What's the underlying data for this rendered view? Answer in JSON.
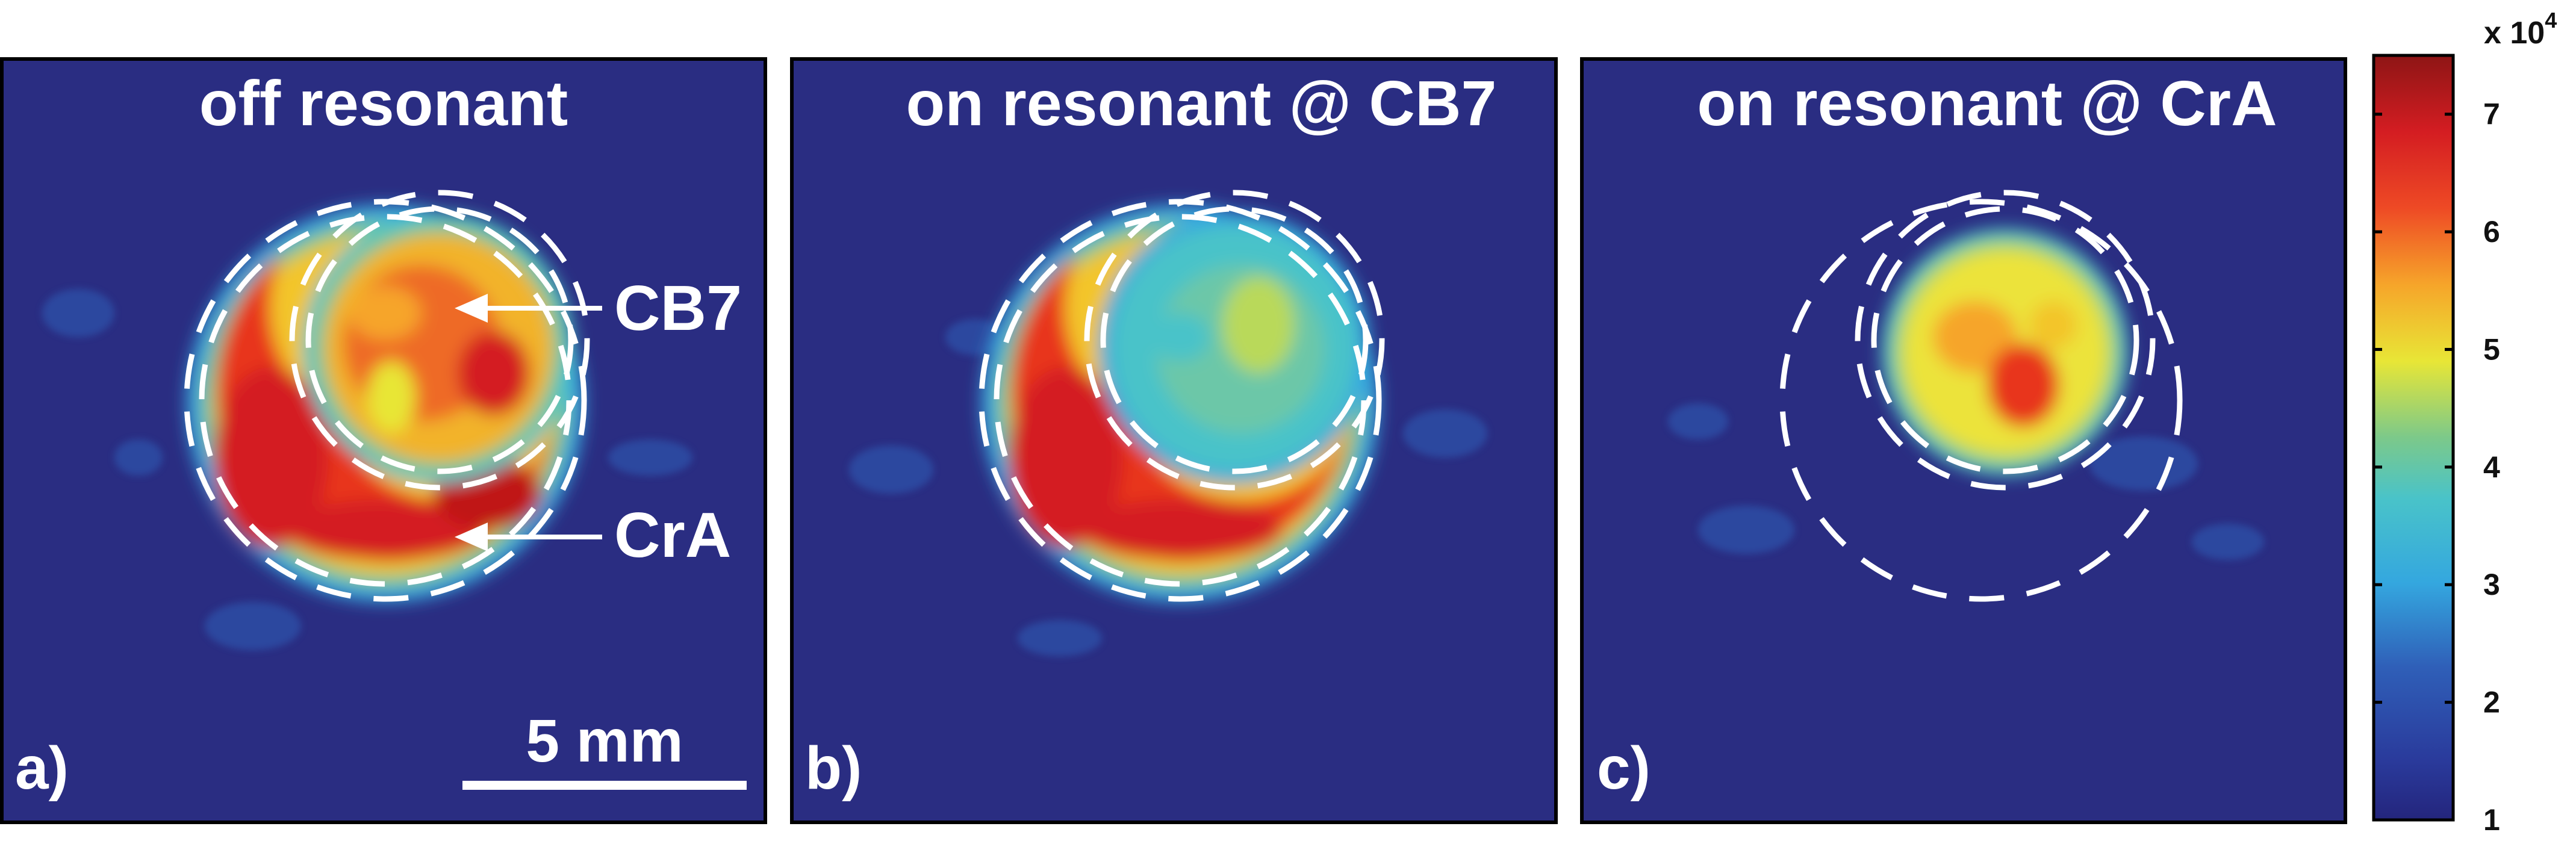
{
  "chart_data": [
    {
      "type": "heatmap",
      "panel_label": "a)",
      "title": "off resonant",
      "annotations": [
        {
          "text": "CB7"
        },
        {
          "text": "CrA"
        }
      ],
      "scale_bar": {
        "label": "5 mm",
        "length_mm": 5
      },
      "regions": {
        "CB7_ring_mean": 6.2,
        "CrA_crescent_mean": 6.5,
        "background": 1.2
      }
    },
    {
      "type": "heatmap",
      "panel_label": "b)",
      "title": "on resonant @ CB7",
      "regions": {
        "CB7_ring_mean": 3.8,
        "CrA_crescent_mean": 6.4,
        "background": 1.2
      }
    },
    {
      "type": "heatmap",
      "panel_label": "c)",
      "title": "on resonant @ CrA",
      "regions": {
        "CB7_ring_mean": 5.5,
        "CrA_crescent_mean": 1.2,
        "background": 1.2
      }
    }
  ],
  "colorbar": {
    "multiplier": "x 10",
    "exponent": "4",
    "range": [
      1,
      7.5
    ],
    "ticks": [
      "1",
      "2",
      "3",
      "4",
      "5",
      "6",
      "7"
    ],
    "colormap": "jet"
  },
  "colors": {
    "background_navy": "#2a2d82",
    "dashed_circles": "#ffffff"
  }
}
